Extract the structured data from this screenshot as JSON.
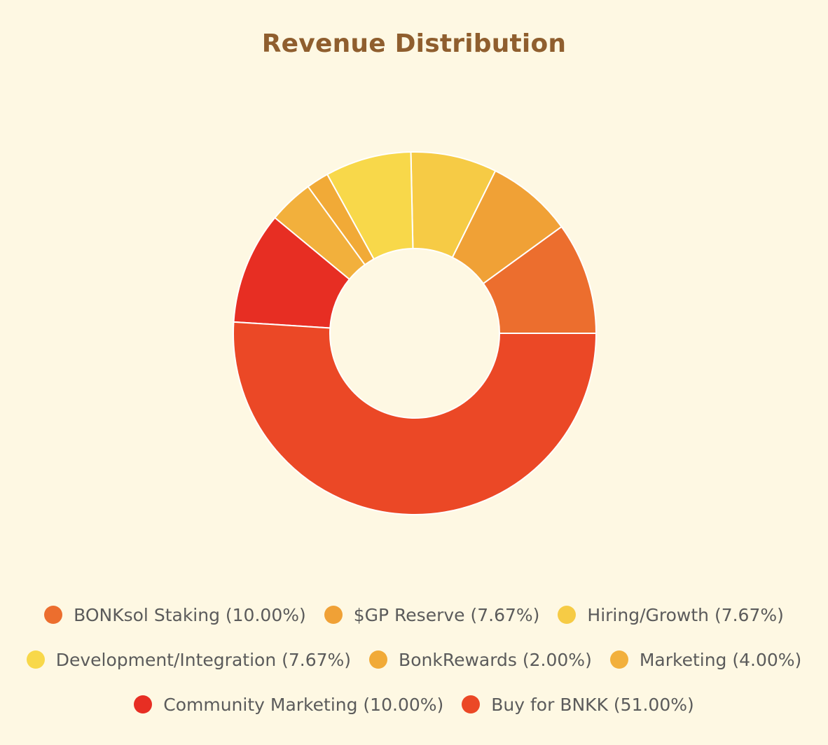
{
  "chart_data": {
    "type": "pie",
    "variant": "donut",
    "title": "Revenue Distribution",
    "slices": [
      {
        "label": "BONKsol Staking",
        "value": 10.0,
        "display": "BONKsol Staking (10.00%)",
        "color": "#EC6E2E"
      },
      {
        "label": "$GP Reserve",
        "value": 7.67,
        "display": "$GP Reserve (7.67%)",
        "color": "#F0A136"
      },
      {
        "label": "Hiring/Growth",
        "value": 7.67,
        "display": "Hiring/Growth (7.67%)",
        "color": "#F6CB45"
      },
      {
        "label": "Development/Integration",
        "value": 7.67,
        "display": "Development/Integration (7.67%)",
        "color": "#F8D84A"
      },
      {
        "label": "BonkRewards",
        "value": 2.0,
        "display": "BonkRewards (2.00%)",
        "color": "#F1AA37"
      },
      {
        "label": "Marketing",
        "value": 4.0,
        "display": "Marketing (4.00%)",
        "color": "#F2B03C"
      },
      {
        "label": "Community Marketing",
        "value": 10.0,
        "display": "Community Marketing (10.00%)",
        "color": "#E72E23"
      },
      {
        "label": "Buy for BNKK",
        "value": 51.0,
        "display": "Buy for BNKK (51.00%)",
        "color": "#EB4826"
      }
    ],
    "legend_position": "bottom"
  },
  "colors": {
    "background": "#FEF8E3",
    "title": "#8F5E2E",
    "legend_text": "#5B5B5B",
    "slice_border": "#FFFFFF"
  }
}
